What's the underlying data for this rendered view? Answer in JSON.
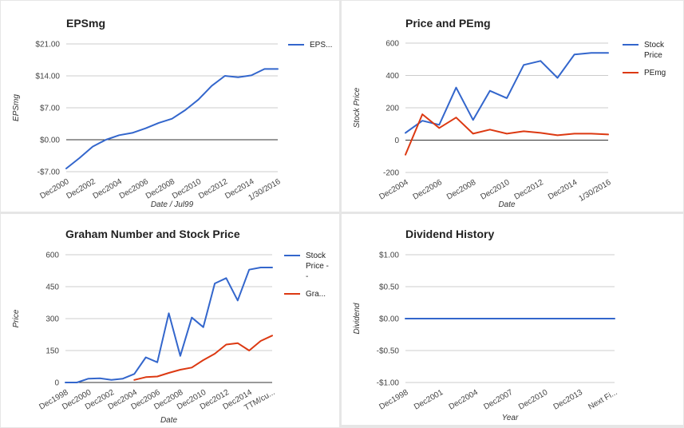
{
  "chart_data": [
    {
      "id": "p1",
      "type": "line",
      "title": "EPSmg",
      "xlabel": "Date / Jul99",
      "ylabel": "EPSmg",
      "categories": [
        "Dec2000",
        "Dec2001",
        "Dec2002",
        "Dec2003",
        "Dec2004",
        "Dec2005",
        "Dec2006",
        "Dec2007",
        "Dec2008",
        "Dec2009",
        "Dec2010",
        "Dec2011",
        "Dec2012",
        "Dec2013",
        "Dec2014",
        "Dec2015",
        "1/30/2016"
      ],
      "x_tick_labels": [
        "Dec2000",
        "Dec2002",
        "Dec2004",
        "Dec2006",
        "Dec2008",
        "Dec2010",
        "Dec2012",
        "Dec2014",
        "1/30/2016"
      ],
      "y_ticks": [
        21,
        14,
        7,
        0,
        -7
      ],
      "y_tick_labels": [
        "$21.00",
        "$14.00",
        "$7.00",
        "$0.00",
        "-$7.00"
      ],
      "ylim": [
        -7,
        21
      ],
      "legend_position": "right",
      "series": [
        {
          "name": "EPS...",
          "color": "#3366cc",
          "values": [
            -6.3,
            -4.0,
            -1.5,
            0.0,
            1.0,
            1.5,
            2.5,
            3.7,
            4.6,
            6.5,
            8.8,
            11.8,
            14.0,
            13.7,
            14.1,
            15.5,
            15.5
          ]
        }
      ]
    },
    {
      "id": "p2",
      "type": "line",
      "title": "Price and PEmg",
      "xlabel": "Date",
      "ylabel": "Stock Price",
      "categories": [
        "Dec2004",
        "Dec2005",
        "Dec2006",
        "Dec2007",
        "Dec2008",
        "Dec2009",
        "Dec2010",
        "Dec2011",
        "Dec2012",
        "Dec2013",
        "Dec2014",
        "Dec2015",
        "1/30/2016"
      ],
      "x_tick_labels": [
        "Dec2004",
        "Dec2006",
        "Dec2008",
        "Dec2010",
        "Dec2012",
        "Dec2014",
        "1/30/2016"
      ],
      "y_ticks": [
        600,
        400,
        200,
        0,
        -200
      ],
      "y_tick_labels": [
        "600",
        "400",
        "200",
        "0",
        "-200"
      ],
      "ylim": [
        -200,
        600
      ],
      "legend_position": "right",
      "series": [
        {
          "name": "Stock Price",
          "legend_lines": [
            "Stock",
            "Price"
          ],
          "color": "#3366cc",
          "values": [
            45,
            120,
            95,
            325,
            125,
            305,
            260,
            465,
            490,
            385,
            530,
            540,
            540
          ]
        },
        {
          "name": "PEmg",
          "legend_lines": [
            "PEmg"
          ],
          "color": "#dc3912",
          "values": [
            -90,
            160,
            75,
            140,
            40,
            65,
            40,
            55,
            45,
            30,
            40,
            40,
            35
          ]
        }
      ]
    },
    {
      "id": "p3",
      "type": "line",
      "title": "Graham Number and Stock Price",
      "xlabel": "Date",
      "ylabel": "Price",
      "categories": [
        "Dec1998",
        "Dec1999",
        "Dec2000",
        "Dec2001",
        "Dec2002",
        "Dec2003",
        "Dec2004",
        "Dec2005",
        "Dec2006",
        "Dec2007",
        "Dec2008",
        "Dec2009",
        "Dec2010",
        "Dec2011",
        "Dec2012",
        "Dec2013",
        "Dec2014",
        "Dec2015",
        "TTM/cu..."
      ],
      "x_tick_labels": [
        "Dec1998",
        "Dec2000",
        "Dec2002",
        "Dec2004",
        "Dec2006",
        "Dec2008",
        "Dec2010",
        "Dec2012",
        "Dec2014",
        "TTM/cu..."
      ],
      "y_ticks": [
        600,
        450,
        300,
        150,
        0
      ],
      "y_tick_labels": [
        "600",
        "450",
        "300",
        "150",
        "0"
      ],
      "ylim": [
        0,
        600
      ],
      "legend_position": "right",
      "series": [
        {
          "name": "Stock Price - -",
          "legend_lines": [
            "Stock",
            "Price -",
            "-"
          ],
          "color": "#3366cc",
          "values": [
            0,
            0,
            18,
            20,
            12,
            18,
            40,
            118,
            95,
            325,
            125,
            305,
            260,
            465,
            490,
            385,
            530,
            540,
            540
          ]
        },
        {
          "name": "Gra...",
          "legend_lines": [
            "Gra..."
          ],
          "color": "#dc3912",
          "values": [
            null,
            null,
            null,
            null,
            null,
            null,
            12,
            25,
            28,
            45,
            60,
            70,
            105,
            135,
            178,
            185,
            150,
            195,
            220
          ]
        }
      ]
    },
    {
      "id": "p4",
      "type": "line",
      "title": "Dividend History",
      "xlabel": "Year",
      "ylabel": "Dividend",
      "categories": [
        "Dec1998",
        "Dec1999",
        "Dec2000",
        "Dec2001",
        "Dec2002",
        "Dec2003",
        "Dec2004",
        "Dec2005",
        "Dec2006",
        "Dec2007",
        "Dec2008",
        "Dec2009",
        "Dec2010",
        "Dec2011",
        "Dec2012",
        "Dec2013",
        "Dec2014",
        "Dec2015",
        "Next Fi..."
      ],
      "x_tick_labels": [
        "Dec1998",
        "Dec2001",
        "Dec2004",
        "Dec2007",
        "Dec2010",
        "Dec2013",
        "Next Fi..."
      ],
      "y_ticks": [
        1,
        0.5,
        0,
        -0.5,
        -1
      ],
      "y_tick_labels": [
        "$1.00",
        "$0.50",
        "$0.00",
        "-$0.50",
        "-$1.00"
      ],
      "ylim": [
        -1,
        1
      ],
      "legend_position": "none",
      "series": [
        {
          "name": "",
          "color": "#3366cc",
          "values": [
            0,
            0,
            0,
            0,
            0,
            0,
            0,
            0,
            0,
            0,
            0,
            0,
            0,
            0,
            0,
            0,
            0,
            0,
            0
          ]
        }
      ]
    }
  ]
}
